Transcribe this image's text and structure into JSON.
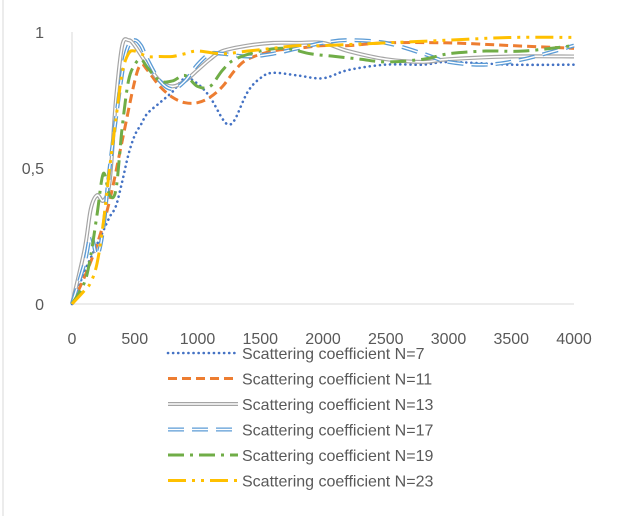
{
  "chart_data": {
    "type": "line",
    "title": "",
    "xlabel": "",
    "ylabel": "",
    "xlim": [
      0,
      4000
    ],
    "ylim": [
      0,
      1
    ],
    "x_ticks": [
      "0",
      "500",
      "1000",
      "1500",
      "2000",
      "2500",
      "3000",
      "3500",
      "4000"
    ],
    "y_ticks": [
      "0",
      "0,5",
      "1"
    ],
    "grid": false,
    "legend_position": "bottom",
    "series": [
      {
        "name": "Scattering coefficient N=7",
        "color": "#4472C4",
        "style": "dotted",
        "points": [
          [
            0,
            0.0
          ],
          [
            100,
            0.12
          ],
          [
            150,
            0.17
          ],
          [
            200,
            0.22
          ],
          [
            250,
            0.27
          ],
          [
            300,
            0.32
          ],
          [
            350,
            0.36
          ],
          [
            400,
            0.45
          ],
          [
            450,
            0.55
          ],
          [
            500,
            0.62
          ],
          [
            550,
            0.66
          ],
          [
            600,
            0.7
          ],
          [
            700,
            0.74
          ],
          [
            800,
            0.78
          ],
          [
            900,
            0.83
          ],
          [
            1000,
            0.81
          ],
          [
            1100,
            0.76
          ],
          [
            1200,
            0.68
          ],
          [
            1250,
            0.66
          ],
          [
            1300,
            0.68
          ],
          [
            1400,
            0.78
          ],
          [
            1500,
            0.83
          ],
          [
            1600,
            0.85
          ],
          [
            1800,
            0.84
          ],
          [
            2000,
            0.83
          ],
          [
            2200,
            0.86
          ],
          [
            2500,
            0.88
          ],
          [
            2800,
            0.88
          ],
          [
            3000,
            0.89
          ],
          [
            3500,
            0.88
          ],
          [
            4000,
            0.88
          ]
        ]
      },
      {
        "name": "Scattering coefficient N=11",
        "color": "#ED7D31",
        "style": "dashed",
        "points": [
          [
            0,
            0.0
          ],
          [
            100,
            0.1
          ],
          [
            200,
            0.22
          ],
          [
            300,
            0.38
          ],
          [
            400,
            0.6
          ],
          [
            500,
            0.82
          ],
          [
            550,
            0.88
          ],
          [
            600,
            0.86
          ],
          [
            700,
            0.8
          ],
          [
            800,
            0.76
          ],
          [
            900,
            0.74
          ],
          [
            1000,
            0.74
          ],
          [
            1100,
            0.76
          ],
          [
            1200,
            0.8
          ],
          [
            1300,
            0.86
          ],
          [
            1400,
            0.9
          ],
          [
            1600,
            0.93
          ],
          [
            1800,
            0.94
          ],
          [
            2000,
            0.95
          ],
          [
            2200,
            0.95
          ],
          [
            2500,
            0.96
          ],
          [
            3000,
            0.96
          ],
          [
            3500,
            0.95
          ],
          [
            4000,
            0.94
          ]
        ]
      },
      {
        "name": "Scattering coefficient N=13",
        "color": "#A5A5A5",
        "style": "double",
        "points": [
          [
            0,
            0.0
          ],
          [
            100,
            0.2
          ],
          [
            150,
            0.35
          ],
          [
            200,
            0.4
          ],
          [
            250,
            0.38
          ],
          [
            300,
            0.45
          ],
          [
            350,
            0.75
          ],
          [
            400,
            0.95
          ],
          [
            450,
            0.97
          ],
          [
            500,
            0.95
          ],
          [
            600,
            0.88
          ],
          [
            700,
            0.82
          ],
          [
            800,
            0.8
          ],
          [
            900,
            0.82
          ],
          [
            1000,
            0.86
          ],
          [
            1100,
            0.9
          ],
          [
            1200,
            0.93
          ],
          [
            1400,
            0.95
          ],
          [
            1600,
            0.96
          ],
          [
            1800,
            0.96
          ],
          [
            2000,
            0.96
          ],
          [
            2200,
            0.93
          ],
          [
            2500,
            0.9
          ],
          [
            2800,
            0.89
          ],
          [
            3000,
            0.9
          ],
          [
            3500,
            0.91
          ],
          [
            4000,
            0.91
          ]
        ]
      },
      {
        "name": "Scattering coefficient N=17",
        "color": "#5B9BD5",
        "style": "long-dash",
        "points": [
          [
            0,
            0.0
          ],
          [
            100,
            0.15
          ],
          [
            150,
            0.25
          ],
          [
            200,
            0.18
          ],
          [
            250,
            0.28
          ],
          [
            300,
            0.5
          ],
          [
            400,
            0.85
          ],
          [
            450,
            0.95
          ],
          [
            500,
            0.97
          ],
          [
            550,
            0.95
          ],
          [
            600,
            0.9
          ],
          [
            700,
            0.82
          ],
          [
            800,
            0.79
          ],
          [
            900,
            0.82
          ],
          [
            1000,
            0.88
          ],
          [
            1100,
            0.92
          ],
          [
            1200,
            0.92
          ],
          [
            1400,
            0.91
          ],
          [
            1600,
            0.92
          ],
          [
            1800,
            0.94
          ],
          [
            2000,
            0.96
          ],
          [
            2200,
            0.97
          ],
          [
            2500,
            0.96
          ],
          [
            2800,
            0.92
          ],
          [
            3000,
            0.89
          ],
          [
            3300,
            0.88
          ],
          [
            3600,
            0.9
          ],
          [
            4000,
            0.95
          ]
        ]
      },
      {
        "name": "Scattering coefficient N=19",
        "color": "#70AD47",
        "style": "dash-dot",
        "points": [
          [
            0,
            0.0
          ],
          [
            100,
            0.08
          ],
          [
            150,
            0.18
          ],
          [
            200,
            0.33
          ],
          [
            250,
            0.48
          ],
          [
            300,
            0.4
          ],
          [
            350,
            0.42
          ],
          [
            400,
            0.65
          ],
          [
            450,
            0.82
          ],
          [
            500,
            0.88
          ],
          [
            550,
            0.9
          ],
          [
            600,
            0.87
          ],
          [
            700,
            0.82
          ],
          [
            800,
            0.82
          ],
          [
            900,
            0.84
          ],
          [
            1000,
            0.8
          ],
          [
            1100,
            0.8
          ],
          [
            1200,
            0.86
          ],
          [
            1300,
            0.9
          ],
          [
            1500,
            0.93
          ],
          [
            1700,
            0.94
          ],
          [
            1900,
            0.92
          ],
          [
            2100,
            0.91
          ],
          [
            2300,
            0.9
          ],
          [
            2500,
            0.89
          ],
          [
            2800,
            0.9
          ],
          [
            3000,
            0.92
          ],
          [
            3300,
            0.93
          ],
          [
            3600,
            0.93
          ],
          [
            4000,
            0.95
          ]
        ]
      },
      {
        "name": "Scattering coefficient N=23",
        "color": "#FFC000",
        "style": "dash-dot-dot",
        "points": [
          [
            0,
            0.0
          ],
          [
            100,
            0.05
          ],
          [
            150,
            0.08
          ],
          [
            200,
            0.15
          ],
          [
            250,
            0.3
          ],
          [
            300,
            0.5
          ],
          [
            350,
            0.68
          ],
          [
            400,
            0.85
          ],
          [
            450,
            0.92
          ],
          [
            500,
            0.93
          ],
          [
            600,
            0.91
          ],
          [
            700,
            0.91
          ],
          [
            800,
            0.91
          ],
          [
            900,
            0.92
          ],
          [
            1000,
            0.93
          ],
          [
            1200,
            0.92
          ],
          [
            1400,
            0.93
          ],
          [
            1600,
            0.94
          ],
          [
            1800,
            0.95
          ],
          [
            2000,
            0.95
          ],
          [
            2500,
            0.96
          ],
          [
            3000,
            0.97
          ],
          [
            3500,
            0.98
          ],
          [
            4000,
            0.98
          ]
        ]
      }
    ]
  }
}
